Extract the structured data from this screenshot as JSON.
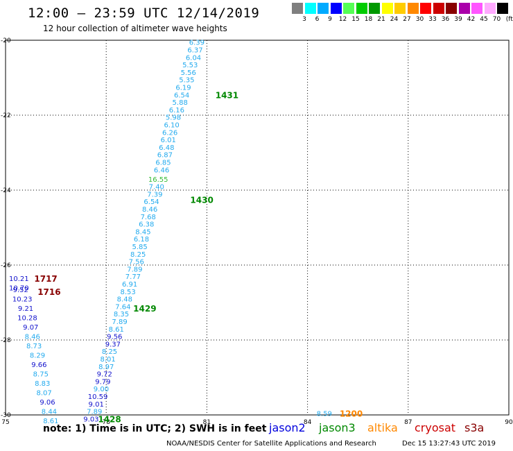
{
  "header": {
    "title": "12:00 – 23:59 UTC 12/14/2019",
    "subtitle": "12 hour collection of altimeter wave heights"
  },
  "color_scale": {
    "unit": "(ft)",
    "bins": [
      {
        "label": "3",
        "color": "#7f7f7f"
      },
      {
        "label": "6",
        "color": "#00ffff"
      },
      {
        "label": "9",
        "color": "#00aaff"
      },
      {
        "label": "12",
        "color": "#0000ff"
      },
      {
        "label": "15",
        "color": "#55ff55"
      },
      {
        "label": "18",
        "color": "#00cc00"
      },
      {
        "label": "21",
        "color": "#009900"
      },
      {
        "label": "24",
        "color": "#ffff00"
      },
      {
        "label": "27",
        "color": "#ffcc00"
      },
      {
        "label": "30",
        "color": "#ff8800"
      },
      {
        "label": "33",
        "color": "#ff0000"
      },
      {
        "label": "36",
        "color": "#cc0000"
      },
      {
        "label": "39",
        "color": "#880000"
      },
      {
        "label": "42",
        "color": "#aa00aa"
      },
      {
        "label": "45",
        "color": "#ff55ff"
      },
      {
        "label": "70",
        "color": "#ffaaff"
      },
      {
        "label": "",
        "color": "#000000"
      }
    ]
  },
  "chart_data": {
    "type": "scatter",
    "xlim": [
      75,
      90
    ],
    "ylim": [
      -30,
      -20
    ],
    "xticks": [
      "75",
      "78",
      "81",
      "84",
      "87",
      "90"
    ],
    "yticks": [
      "-20",
      "-22",
      "-24",
      "-26",
      "-28",
      "-30"
    ],
    "grid": true,
    "points": [
      {
        "x": 80.7,
        "y": -20.05,
        "label": "6.39",
        "color": "#22aaee"
      },
      {
        "x": 80.65,
        "y": -20.25,
        "label": "6.37",
        "color": "#22aaee"
      },
      {
        "x": 80.6,
        "y": -20.45,
        "label": "6.04",
        "color": "#22aaee"
      },
      {
        "x": 80.5,
        "y": -20.65,
        "label": "5.53",
        "color": "#22aaee"
      },
      {
        "x": 80.45,
        "y": -20.85,
        "label": "5.56",
        "color": "#22aaee"
      },
      {
        "x": 80.4,
        "y": -21.05,
        "label": "5.35",
        "color": "#22aaee"
      },
      {
        "x": 80.3,
        "y": -21.25,
        "label": "6.19",
        "color": "#22aaee"
      },
      {
        "x": 80.25,
        "y": -21.45,
        "label": "6.54",
        "color": "#22aaee"
      },
      {
        "x": 80.2,
        "y": -21.65,
        "label": "5.88",
        "color": "#22aaee"
      },
      {
        "x": 80.1,
        "y": -21.85,
        "label": "6.16",
        "color": "#22aaee"
      },
      {
        "x": 80.0,
        "y": -22.05,
        "label": "5.98",
        "color": "#22aaee"
      },
      {
        "x": 79.95,
        "y": -22.25,
        "label": "6.10",
        "color": "#22aaee"
      },
      {
        "x": 79.9,
        "y": -22.45,
        "label": "6.26",
        "color": "#22aaee"
      },
      {
        "x": 79.85,
        "y": -22.65,
        "label": "6.01",
        "color": "#22aaee"
      },
      {
        "x": 79.8,
        "y": -22.85,
        "label": "6.48",
        "color": "#22aaee"
      },
      {
        "x": 79.75,
        "y": -23.05,
        "label": "6.87",
        "color": "#22aaee"
      },
      {
        "x": 79.7,
        "y": -23.25,
        "label": "6.85",
        "color": "#22aaee"
      },
      {
        "x": 79.65,
        "y": -23.45,
        "label": "6.46",
        "color": "#22aaee"
      },
      {
        "x": 79.55,
        "y": -23.7,
        "label": "16.55",
        "color": "#33bb33"
      },
      {
        "x": 79.5,
        "y": -23.9,
        "label": "7.40",
        "color": "#22aaee"
      },
      {
        "x": 79.45,
        "y": -24.1,
        "label": "7.39",
        "color": "#22aaee"
      },
      {
        "x": 79.35,
        "y": -24.3,
        "label": "6.54",
        "color": "#22aaee"
      },
      {
        "x": 79.3,
        "y": -24.5,
        "label": "8.46",
        "color": "#22aaee"
      },
      {
        "x": 79.25,
        "y": -24.7,
        "label": "7.68",
        "color": "#22aaee"
      },
      {
        "x": 79.2,
        "y": -24.9,
        "label": "6.38",
        "color": "#22aaee"
      },
      {
        "x": 79.1,
        "y": -25.1,
        "label": "8.45",
        "color": "#22aaee"
      },
      {
        "x": 79.05,
        "y": -25.3,
        "label": "6.18",
        "color": "#22aaee"
      },
      {
        "x": 79.0,
        "y": -25.5,
        "label": "5.85",
        "color": "#22aaee"
      },
      {
        "x": 78.95,
        "y": -25.7,
        "label": "8.25",
        "color": "#22aaee"
      },
      {
        "x": 78.9,
        "y": -25.9,
        "label": "7.56",
        "color": "#22aaee"
      },
      {
        "x": 78.85,
        "y": -26.1,
        "label": "7.89",
        "color": "#22aaee"
      },
      {
        "x": 78.8,
        "y": -26.3,
        "label": "7.77",
        "color": "#22aaee"
      },
      {
        "x": 78.7,
        "y": -26.5,
        "label": "6.91",
        "color": "#22aaee"
      },
      {
        "x": 78.65,
        "y": -26.7,
        "label": "8.53",
        "color": "#22aaee"
      },
      {
        "x": 78.55,
        "y": -26.9,
        "label": "8.48",
        "color": "#22aaee"
      },
      {
        "x": 78.5,
        "y": -27.1,
        "label": "7.64",
        "color": "#22aaee"
      },
      {
        "x": 78.45,
        "y": -27.3,
        "label": "8.35",
        "color": "#22aaee"
      },
      {
        "x": 78.4,
        "y": -27.5,
        "label": "7.89",
        "color": "#22aaee"
      },
      {
        "x": 78.3,
        "y": -27.7,
        "label": "8.61",
        "color": "#22aaee"
      },
      {
        "x": 78.25,
        "y": -27.9,
        "label": "9.56",
        "color": "#1111cc"
      },
      {
        "x": 78.2,
        "y": -28.1,
        "label": "9.37",
        "color": "#1111cc"
      },
      {
        "x": 78.1,
        "y": -28.3,
        "label": "8.25",
        "color": "#22aaee"
      },
      {
        "x": 78.05,
        "y": -28.5,
        "label": "8.01",
        "color": "#22aaee"
      },
      {
        "x": 78.0,
        "y": -28.7,
        "label": "8.97",
        "color": "#22aaee"
      },
      {
        "x": 77.95,
        "y": -28.9,
        "label": "9.72",
        "color": "#1111cc"
      },
      {
        "x": 77.9,
        "y": -29.1,
        "label": "9.79",
        "color": "#1111cc"
      },
      {
        "x": 77.85,
        "y": -29.3,
        "label": "9.00",
        "color": "#22aaee"
      },
      {
        "x": 77.75,
        "y": -29.5,
        "label": "10.59",
        "color": "#1111cc"
      },
      {
        "x": 77.7,
        "y": -29.7,
        "label": "9.01",
        "color": "#1111cc"
      },
      {
        "x": 77.65,
        "y": -29.9,
        "label": "7.89",
        "color": "#22aaee"
      },
      {
        "x": 77.55,
        "y": -30.1,
        "label": "9.03",
        "color": "#1111cc"
      },
      {
        "x": 75.4,
        "y": -26.35,
        "label": "10.21",
        "color": "#1111cc"
      },
      {
        "x": 75.4,
        "y": -26.6,
        "label": "10.70",
        "color": "#1111cc"
      },
      {
        "x": 75.45,
        "y": -26.65,
        "label": "9.52",
        "color": "#1111cc"
      },
      {
        "x": 75.5,
        "y": -26.9,
        "label": "10.23",
        "color": "#1111cc"
      },
      {
        "x": 75.6,
        "y": -27.15,
        "label": "9.21",
        "color": "#1111cc"
      },
      {
        "x": 75.65,
        "y": -27.4,
        "label": "10.28",
        "color": "#1111cc"
      },
      {
        "x": 75.75,
        "y": -27.65,
        "label": "9.07",
        "color": "#1111cc"
      },
      {
        "x": 75.8,
        "y": -27.9,
        "label": "8.46",
        "color": "#22aaee"
      },
      {
        "x": 75.85,
        "y": -28.15,
        "label": "8.73",
        "color": "#22aaee"
      },
      {
        "x": 75.95,
        "y": -28.4,
        "label": "8.29",
        "color": "#22aaee"
      },
      {
        "x": 76.0,
        "y": -28.65,
        "label": "9.66",
        "color": "#1111cc"
      },
      {
        "x": 76.05,
        "y": -28.9,
        "label": "8.75",
        "color": "#22aaee"
      },
      {
        "x": 76.1,
        "y": -29.15,
        "label": "8.83",
        "color": "#22aaee"
      },
      {
        "x": 76.15,
        "y": -29.4,
        "label": "8.07",
        "color": "#22aaee"
      },
      {
        "x": 76.25,
        "y": -29.65,
        "label": "9.06",
        "color": "#1111cc"
      },
      {
        "x": 76.3,
        "y": -29.9,
        "label": "8.44",
        "color": "#22aaee"
      },
      {
        "x": 76.35,
        "y": -30.15,
        "label": "8.61",
        "color": "#22aaee"
      },
      {
        "x": 84.5,
        "y": -29.95,
        "label": "8.59",
        "color": "#22aaee"
      }
    ],
    "pass_labels": [
      {
        "x": 81.6,
        "y": -21.45,
        "label": "1431",
        "color": "#008800"
      },
      {
        "x": 80.85,
        "y": -24.25,
        "label": "1430",
        "color": "#008800"
      },
      {
        "x": 79.15,
        "y": -27.15,
        "label": "1429",
        "color": "#008800"
      },
      {
        "x": 78.1,
        "y": -30.1,
        "label": "1428",
        "color": "#008800"
      },
      {
        "x": 76.2,
        "y": -26.35,
        "label": "1717",
        "color": "#880000"
      },
      {
        "x": 76.3,
        "y": -26.7,
        "label": "1716",
        "color": "#880000"
      },
      {
        "x": 85.3,
        "y": -29.95,
        "label": "1200",
        "color": "#ff8800"
      }
    ]
  },
  "footer": {
    "note": "note:  1) Time is in UTC;  2) SWH is in feet",
    "legend": [
      {
        "name": "jason2",
        "color": "#0000dd"
      },
      {
        "name": "jason3",
        "color": "#008800"
      },
      {
        "name": "altika",
        "color": "#ff8800"
      },
      {
        "name": "cryosat",
        "color": "#cc0000"
      },
      {
        "name": "s3a",
        "color": "#880000"
      }
    ],
    "credit": "NOAA/NESDIS Center for Satellite Applications and Research",
    "timestamp": "Dec 15 13:27:43 UTC 2019"
  }
}
